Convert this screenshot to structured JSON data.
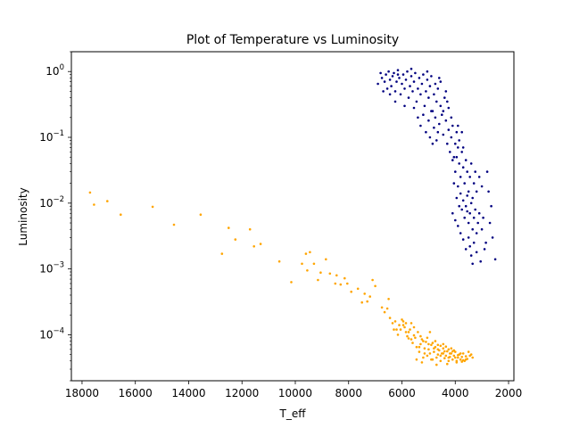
{
  "chart_data": {
    "type": "scatter",
    "title": "Plot of Temperature vs Luminosity",
    "xlabel": "T_eff",
    "ylabel": "Luminosity",
    "x_reversed": true,
    "y_scale": "log",
    "xlim": [
      18400,
      1800
    ],
    "ylim": [
      2e-05,
      2.0
    ],
    "x_ticks": [
      18000,
      16000,
      14000,
      12000,
      10000,
      8000,
      6000,
      4000,
      2000
    ],
    "x_tick_labels": [
      "18000",
      "16000",
      "14000",
      "12000",
      "10000",
      "8000",
      "6000",
      "4000",
      "2000"
    ],
    "y_ticks": [
      0.0001,
      0.001,
      0.01,
      0.1,
      1
    ],
    "y_tick_labels": [
      {
        "base": "10",
        "exp": "−4"
      },
      {
        "base": "10",
        "exp": "−3"
      },
      {
        "base": "10",
        "exp": "−2"
      },
      {
        "base": "10",
        "exp": "−1"
      },
      {
        "base": "10",
        "exp": "0"
      }
    ],
    "grid": false,
    "legend": "none",
    "series": [
      {
        "color": "#000080",
        "points": [
          [
            6900,
            0.65
          ],
          [
            6800,
            0.95
          ],
          [
            6750,
            0.8
          ],
          [
            6650,
            0.7
          ],
          [
            6600,
            0.9
          ],
          [
            6550,
            0.55
          ],
          [
            6500,
            1.0
          ],
          [
            6450,
            0.75
          ],
          [
            6400,
            0.6
          ],
          [
            6350,
            0.85
          ],
          [
            6300,
            0.95
          ],
          [
            6250,
            0.5
          ],
          [
            6200,
            0.7
          ],
          [
            6150,
            1.05
          ],
          [
            6100,
            0.8
          ],
          [
            6050,
            0.45
          ],
          [
            6000,
            0.65
          ],
          [
            5950,
            0.9
          ],
          [
            5900,
            0.55
          ],
          [
            5850,
            0.75
          ],
          [
            5800,
            1.0
          ],
          [
            5750,
            0.4
          ],
          [
            5700,
            0.6
          ],
          [
            5650,
            0.85
          ],
          [
            5600,
            0.5
          ],
          [
            5550,
            0.7
          ],
          [
            5500,
            0.95
          ],
          [
            5450,
            0.35
          ],
          [
            5400,
            0.55
          ],
          [
            5350,
            0.8
          ],
          [
            5300,
            0.45
          ],
          [
            5250,
            0.65
          ],
          [
            5200,
            0.9
          ],
          [
            5150,
            0.3
          ],
          [
            5100,
            0.5
          ],
          [
            5050,
            0.75
          ],
          [
            5000,
            0.4
          ],
          [
            4950,
            0.6
          ],
          [
            4900,
            0.85
          ],
          [
            4850,
            0.25
          ],
          [
            4800,
            0.45
          ],
          [
            4750,
            0.65
          ],
          [
            4700,
            0.35
          ],
          [
            4650,
            0.55
          ],
          [
            4600,
            0.8
          ],
          [
            6700,
            0.5
          ],
          [
            6250,
            0.35
          ],
          [
            5900,
            0.3
          ],
          [
            5550,
            0.28
          ],
          [
            5400,
            0.2
          ],
          [
            5300,
            0.15
          ],
          [
            5200,
            0.22
          ],
          [
            5100,
            0.12
          ],
          [
            5000,
            0.18
          ],
          [
            4950,
            0.1
          ],
          [
            4900,
            0.25
          ],
          [
            4850,
            0.08
          ],
          [
            4800,
            0.14
          ],
          [
            4750,
            0.2
          ],
          [
            4700,
            0.09
          ],
          [
            4650,
            0.12
          ],
          [
            4600,
            0.16
          ],
          [
            4550,
            0.3
          ],
          [
            4500,
            0.22
          ],
          [
            4450,
            0.11
          ],
          [
            4400,
            0.4
          ],
          [
            4350,
            0.18
          ],
          [
            4300,
            0.08
          ],
          [
            4250,
            0.13
          ],
          [
            4200,
            0.06
          ],
          [
            4150,
            0.1
          ],
          [
            4100,
            0.15
          ],
          [
            4050,
            0.05
          ],
          [
            4000,
            0.08
          ],
          [
            3950,
            0.12
          ],
          [
            4100,
            0.045
          ],
          [
            4000,
            0.03
          ],
          [
            3950,
            0.05
          ],
          [
            3900,
            0.07
          ],
          [
            3850,
            0.04
          ],
          [
            3800,
            0.025
          ],
          [
            3750,
            0.06
          ],
          [
            3700,
            0.035
          ],
          [
            3650,
            0.02
          ],
          [
            3600,
            0.045
          ],
          [
            3550,
            0.03
          ],
          [
            3500,
            0.015
          ],
          [
            3450,
            0.025
          ],
          [
            3400,
            0.04
          ],
          [
            3350,
            0.012
          ],
          [
            3300,
            0.02
          ],
          [
            3250,
            0.03
          ],
          [
            3200,
            0.015
          ],
          [
            4050,
            0.02
          ],
          [
            3950,
            0.012
          ],
          [
            3900,
            0.018
          ],
          [
            3850,
            0.009
          ],
          [
            3800,
            0.014
          ],
          [
            3750,
            0.008
          ],
          [
            3700,
            0.011
          ],
          [
            3650,
            0.006
          ],
          [
            3600,
            0.009
          ],
          [
            3550,
            0.013
          ],
          [
            3500,
            0.005
          ],
          [
            3450,
            0.007
          ],
          [
            3400,
            0.01
          ],
          [
            3350,
            0.004
          ],
          [
            3300,
            0.006
          ],
          [
            3250,
            0.008
          ],
          [
            3200,
            0.0035
          ],
          [
            3150,
            0.005
          ],
          [
            3100,
            0.007
          ],
          [
            3000,
            0.004
          ],
          [
            2950,
            0.006
          ],
          [
            2850,
            0.0025
          ],
          [
            2700,
            0.005
          ],
          [
            2600,
            0.003
          ],
          [
            2500,
            0.0014
          ],
          [
            3500,
            0.003
          ],
          [
            3450,
            0.0022
          ],
          [
            3400,
            0.0016
          ],
          [
            3350,
            0.0012
          ],
          [
            3600,
            0.002
          ],
          [
            3700,
            0.0028
          ],
          [
            3800,
            0.0035
          ],
          [
            3900,
            0.0045
          ],
          [
            3300,
            0.0025
          ],
          [
            3200,
            0.0018
          ],
          [
            3050,
            0.0013
          ],
          [
            2900,
            0.002
          ],
          [
            4000,
            0.0055
          ],
          [
            4100,
            0.007
          ],
          [
            3550,
            0.0075
          ],
          [
            2800,
            0.03
          ],
          [
            2750,
            0.015
          ],
          [
            2650,
            0.009
          ],
          [
            3100,
            0.025
          ],
          [
            3000,
            0.018
          ],
          [
            4350,
            0.5
          ],
          [
            4550,
            0.7
          ],
          [
            5050,
            1.0
          ],
          [
            5650,
            1.1
          ],
          [
            6150,
            0.9
          ],
          [
            6450,
            0.45
          ],
          [
            4450,
            0.25
          ],
          [
            4300,
            0.35
          ],
          [
            4150,
            0.2
          ],
          [
            4250,
            0.28
          ],
          [
            3900,
            0.15
          ],
          [
            3850,
            0.09
          ],
          [
            3750,
            0.12
          ],
          [
            3700,
            0.07
          ]
        ]
      },
      {
        "color": "#ffa500",
        "points": [
          [
            17700,
            0.0145
          ],
          [
            17550,
            0.0095
          ],
          [
            17050,
            0.0107
          ],
          [
            16550,
            0.0067
          ],
          [
            15350,
            0.0088
          ],
          [
            14550,
            0.0047
          ],
          [
            13550,
            0.0067
          ],
          [
            12500,
            0.0042
          ],
          [
            12250,
            0.0028
          ],
          [
            11700,
            0.004
          ],
          [
            11550,
            0.0022
          ],
          [
            11300,
            0.0024
          ],
          [
            12750,
            0.0017
          ],
          [
            10600,
            0.0013
          ],
          [
            10150,
            0.00063
          ],
          [
            9600,
            0.0017
          ],
          [
            9450,
            0.0018
          ],
          [
            9300,
            0.0012
          ],
          [
            9550,
            0.00095
          ],
          [
            9750,
            0.0012
          ],
          [
            9150,
            0.00068
          ],
          [
            9050,
            0.00088
          ],
          [
            8850,
            0.0014
          ],
          [
            8700,
            0.00085
          ],
          [
            8500,
            0.0006
          ],
          [
            8450,
            0.0008
          ],
          [
            8300,
            0.00058
          ],
          [
            8150,
            0.00072
          ],
          [
            8050,
            0.0006
          ],
          [
            7900,
            0.00045
          ],
          [
            7650,
            0.0005
          ],
          [
            7500,
            0.00031
          ],
          [
            7400,
            0.00042
          ],
          [
            7300,
            0.00032
          ],
          [
            7200,
            0.00038
          ],
          [
            7100,
            0.00068
          ],
          [
            7000,
            0.00055
          ],
          [
            6750,
            0.00026
          ],
          [
            6650,
            0.00022
          ],
          [
            6500,
            0.00035
          ],
          [
            6450,
            0.00018
          ],
          [
            6350,
            0.00015
          ],
          [
            6250,
            0.00016
          ],
          [
            6200,
            0.00012
          ],
          [
            6150,
            0.0001
          ],
          [
            6100,
            0.00014
          ],
          [
            6000,
            0.00017
          ],
          [
            5950,
            0.00016
          ],
          [
            5900,
            0.00013
          ],
          [
            5850,
            0.00015
          ],
          [
            5800,
            9.5e-05
          ],
          [
            5750,
            0.00011
          ],
          [
            5700,
            0.00012
          ],
          [
            5650,
            8.5e-05
          ],
          [
            5600,
            7.5e-05
          ],
          [
            5550,
            0.00013
          ],
          [
            5500,
            9e-05
          ],
          [
            5450,
            6.5e-05
          ],
          [
            5400,
            0.00011
          ],
          [
            5350,
            5.5e-05
          ],
          [
            5300,
            7.2e-05
          ],
          [
            5250,
            8.5e-05
          ],
          [
            5200,
            4.5e-05
          ],
          [
            5150,
            6.2e-05
          ],
          [
            5100,
            7.8e-05
          ],
          [
            5050,
            4.8e-05
          ],
          [
            5000,
            6e-05
          ],
          [
            4950,
            5.2e-05
          ],
          [
            4900,
            7e-05
          ],
          [
            4850,
            4.2e-05
          ],
          [
            4800,
            5.5e-05
          ],
          [
            4750,
            6.5e-05
          ],
          [
            4700,
            4.5e-05
          ],
          [
            4650,
            5e-05
          ],
          [
            4600,
            5.8e-05
          ],
          [
            4550,
            4e-05
          ],
          [
            4500,
            5.2e-05
          ],
          [
            4450,
            6.2e-05
          ],
          [
            4400,
            4.4e-05
          ],
          [
            4350,
            4.8e-05
          ],
          [
            4300,
            5.6e-05
          ],
          [
            4250,
            4e-05
          ],
          [
            4200,
            4.6e-05
          ],
          [
            4150,
            5.2e-05
          ],
          [
            4100,
            4.2e-05
          ],
          [
            4050,
            4.8e-05
          ],
          [
            4000,
            5.5e-05
          ],
          [
            3950,
            4e-05
          ],
          [
            3900,
            4.5e-05
          ],
          [
            3850,
            5e-05
          ],
          [
            3800,
            4.2e-05
          ],
          [
            3750,
            4.6e-05
          ],
          [
            3700,
            5.2e-05
          ],
          [
            3650,
            4e-05
          ],
          [
            3600,
            4.7e-05
          ],
          [
            3550,
            4.3e-05
          ],
          [
            3500,
            5.5e-05
          ],
          [
            3450,
            4.8e-05
          ],
          [
            3400,
            5e-05
          ],
          [
            3350,
            4.5e-05
          ],
          [
            5050,
            9e-05
          ],
          [
            4950,
            0.00011
          ],
          [
            4850,
            7.5e-05
          ],
          [
            4750,
            8e-05
          ],
          [
            4650,
            7e-05
          ],
          [
            4550,
            6.8e-05
          ],
          [
            4450,
            7.2e-05
          ],
          [
            4350,
            6.6e-05
          ],
          [
            4250,
            6e-05
          ],
          [
            4150,
            6.2e-05
          ],
          [
            4050,
            5.8e-05
          ],
          [
            5300,
            9.5e-05
          ],
          [
            5450,
            4.2e-05
          ],
          [
            5250,
            3.8e-05
          ],
          [
            4700,
            3.5e-05
          ],
          [
            4300,
            3.6e-05
          ],
          [
            3950,
            3.8e-05
          ],
          [
            3750,
            3.9e-05
          ],
          [
            6050,
            0.00012
          ],
          [
            5950,
            0.00014
          ],
          [
            5650,
            0.00015
          ],
          [
            5350,
            6.5e-05
          ],
          [
            5150,
            5.2e-05
          ],
          [
            4900,
            4.2e-05
          ],
          [
            4650,
            6e-05
          ],
          [
            4400,
            5.6e-05
          ],
          [
            4200,
            5.2e-05
          ],
          [
            4000,
            4.5e-05
          ],
          [
            3800,
            5.2e-05
          ],
          [
            3600,
            4.2e-05
          ],
          [
            4550,
            4.8e-05
          ],
          [
            4800,
            6.2e-05
          ],
          [
            5000,
            7.2e-05
          ],
          [
            5200,
            8e-05
          ],
          [
            5550,
            9.8e-05
          ],
          [
            5750,
            8.8e-05
          ],
          [
            5850,
            0.00011
          ],
          [
            6300,
            0.00012
          ],
          [
            6550,
            0.00025
          ],
          [
            4450,
            5.2e-05
          ],
          [
            4250,
            4.5e-05
          ],
          [
            4100,
            5.6e-05
          ],
          [
            3900,
            4.9e-05
          ],
          [
            3700,
            4.1e-05
          ]
        ]
      }
    ]
  }
}
